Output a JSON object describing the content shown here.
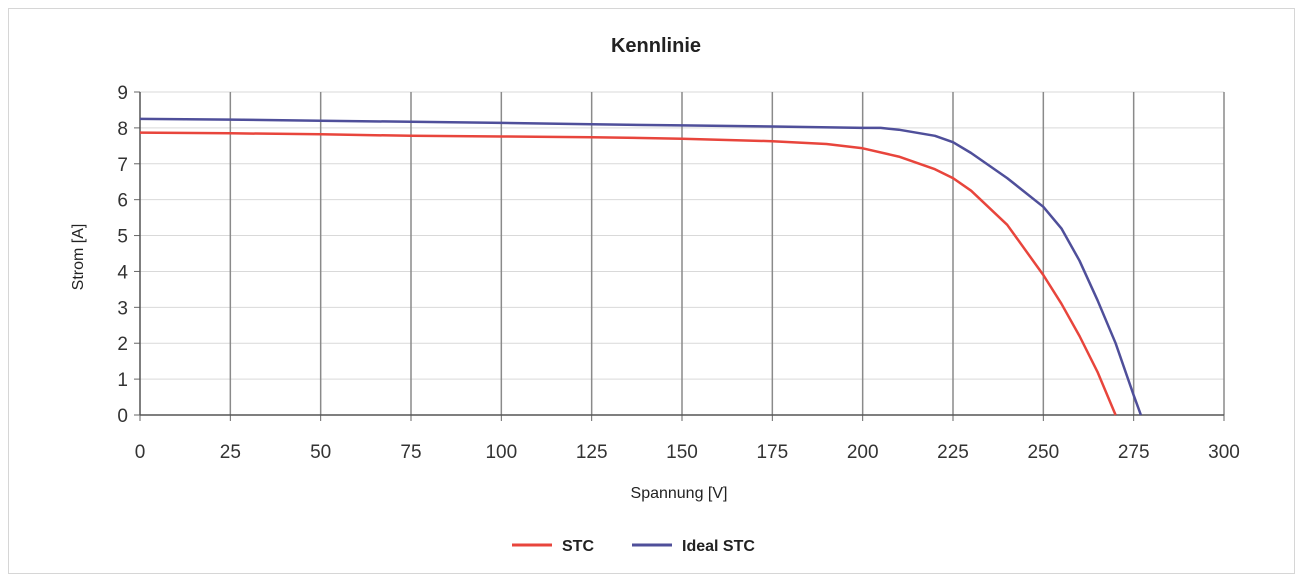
{
  "chart_data": {
    "type": "line",
    "title": "Kennlinie",
    "xlabel": "Spannung [V]",
    "ylabel": "Strom [A]",
    "xlim": [
      0,
      300
    ],
    "ylim": [
      0,
      9
    ],
    "x_ticks": [
      "0",
      "25",
      "50",
      "75",
      "100",
      "125",
      "150",
      "175",
      "200",
      "225",
      "250",
      "275",
      "300"
    ],
    "y_ticks": [
      "0",
      "1",
      "2",
      "3",
      "4",
      "5",
      "6",
      "7",
      "8",
      "9"
    ],
    "grid": true,
    "legend_position": "bottom",
    "series": [
      {
        "name": "STC",
        "color": "#e8453c",
        "points": [
          [
            0,
            7.87
          ],
          [
            25,
            7.85
          ],
          [
            50,
            7.82
          ],
          [
            75,
            7.78
          ],
          [
            100,
            7.76
          ],
          [
            125,
            7.74
          ],
          [
            150,
            7.7
          ],
          [
            175,
            7.63
          ],
          [
            190,
            7.55
          ],
          [
            200,
            7.43
          ],
          [
            210,
            7.2
          ],
          [
            220,
            6.85
          ],
          [
            225,
            6.6
          ],
          [
            230,
            6.25
          ],
          [
            240,
            5.3
          ],
          [
            250,
            3.9
          ],
          [
            255,
            3.1
          ],
          [
            260,
            2.2
          ],
          [
            265,
            1.2
          ],
          [
            270,
            0
          ]
        ]
      },
      {
        "name": "Ideal STC",
        "color": "#4f4f9a",
        "points": [
          [
            0,
            8.25
          ],
          [
            25,
            8.23
          ],
          [
            50,
            8.2
          ],
          [
            75,
            8.17
          ],
          [
            100,
            8.14
          ],
          [
            125,
            8.1
          ],
          [
            150,
            8.07
          ],
          [
            175,
            8.04
          ],
          [
            200,
            8.0
          ],
          [
            205,
            8.0
          ],
          [
            210,
            7.95
          ],
          [
            220,
            7.78
          ],
          [
            225,
            7.6
          ],
          [
            230,
            7.3
          ],
          [
            240,
            6.6
          ],
          [
            250,
            5.8
          ],
          [
            255,
            5.2
          ],
          [
            260,
            4.3
          ],
          [
            265,
            3.2
          ],
          [
            270,
            2.0
          ],
          [
            275,
            0.55
          ],
          [
            277,
            0
          ]
        ]
      }
    ]
  }
}
